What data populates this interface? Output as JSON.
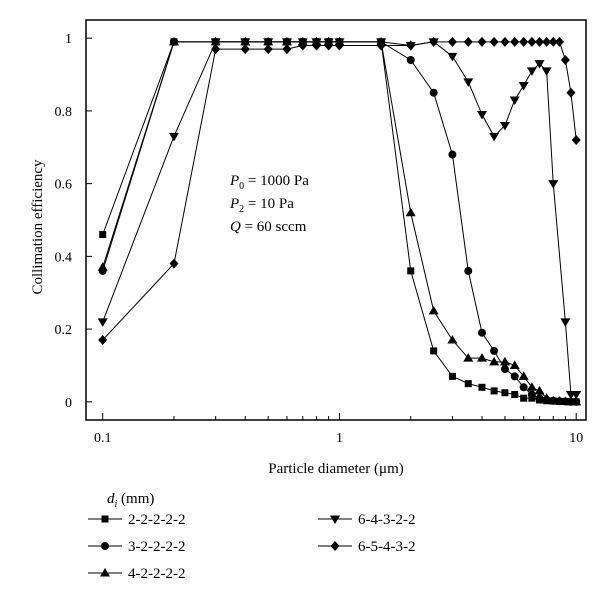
{
  "chart_data": {
    "type": "line",
    "title": "",
    "xlabel": "Particle diameter (μm)",
    "ylabel": "Collimation efficiency",
    "xscale": "log",
    "xlim": [
      0.085,
      11
    ],
    "ylim": [
      -0.05,
      1.05
    ],
    "grid": false,
    "x_ticks": [
      0.1,
      1,
      10
    ],
    "x_tick_labels": [
      "0.1",
      "1",
      "10"
    ],
    "y_ticks": [
      0,
      0.2,
      0.4,
      0.6,
      0.8,
      1
    ],
    "y_tick_labels": [
      "0",
      "0.2",
      "0.4",
      "0.6",
      "0.8",
      "1"
    ],
    "annotations": [
      "P0 = 1000 Pa",
      "P2 = 10 Pa",
      "Q = 60 sccm"
    ],
    "legend_title": "d_i (mm)",
    "legend_position": "bottom",
    "series": [
      {
        "name": "2-2-2-2-2",
        "marker": "square",
        "points": [
          [
            0.1,
            0.46
          ],
          [
            0.2,
            0.99
          ],
          [
            0.3,
            0.99
          ],
          [
            0.4,
            0.99
          ],
          [
            0.5,
            0.99
          ],
          [
            0.6,
            0.99
          ],
          [
            0.7,
            0.99
          ],
          [
            0.8,
            0.99
          ],
          [
            0.9,
            0.99
          ],
          [
            1.0,
            0.99
          ],
          [
            1.5,
            0.99
          ],
          [
            2.0,
            0.36
          ],
          [
            2.5,
            0.14
          ],
          [
            3.0,
            0.07
          ],
          [
            3.5,
            0.05
          ],
          [
            4.0,
            0.04
          ],
          [
            4.5,
            0.03
          ],
          [
            5.0,
            0.025
          ],
          [
            5.5,
            0.02
          ],
          [
            6.0,
            0.01
          ],
          [
            6.5,
            0.01
          ],
          [
            7.0,
            0.005
          ],
          [
            7.5,
            0.003
          ],
          [
            8.0,
            0.002
          ],
          [
            8.5,
            0.001
          ],
          [
            9.0,
            0.001
          ],
          [
            9.5,
            0.0
          ],
          [
            10.0,
            0.0
          ]
        ]
      },
      {
        "name": "3-2-2-2-2",
        "marker": "circle",
        "points": [
          [
            0.1,
            0.36
          ],
          [
            0.2,
            0.99
          ],
          [
            0.3,
            0.99
          ],
          [
            0.4,
            0.99
          ],
          [
            0.5,
            0.99
          ],
          [
            0.6,
            0.99
          ],
          [
            0.7,
            0.99
          ],
          [
            0.8,
            0.99
          ],
          [
            0.9,
            0.99
          ],
          [
            1.0,
            0.99
          ],
          [
            1.5,
            0.99
          ],
          [
            2.0,
            0.94
          ],
          [
            2.5,
            0.85
          ],
          [
            3.0,
            0.68
          ],
          [
            3.5,
            0.36
          ],
          [
            4.0,
            0.19
          ],
          [
            4.5,
            0.14
          ],
          [
            5.0,
            0.09
          ],
          [
            5.5,
            0.07
          ],
          [
            6.0,
            0.04
          ],
          [
            6.5,
            0.02
          ],
          [
            7.0,
            0.01
          ],
          [
            7.5,
            0.005
          ],
          [
            8.0,
            0.003
          ],
          [
            8.5,
            0.002
          ],
          [
            9.0,
            0.001
          ],
          [
            9.5,
            0.0
          ],
          [
            10.0,
            0.0
          ]
        ]
      },
      {
        "name": "4-2-2-2-2",
        "marker": "triangle-up",
        "points": [
          [
            0.1,
            0.37
          ],
          [
            0.2,
            0.99
          ],
          [
            0.3,
            0.99
          ],
          [
            0.4,
            0.99
          ],
          [
            0.5,
            0.99
          ],
          [
            0.6,
            0.99
          ],
          [
            0.7,
            0.99
          ],
          [
            0.8,
            0.99
          ],
          [
            0.9,
            0.99
          ],
          [
            1.0,
            0.99
          ],
          [
            1.5,
            0.99
          ],
          [
            2.0,
            0.52
          ],
          [
            2.5,
            0.25
          ],
          [
            3.0,
            0.17
          ],
          [
            3.5,
            0.12
          ],
          [
            4.0,
            0.12
          ],
          [
            4.5,
            0.11
          ],
          [
            5.0,
            0.11
          ],
          [
            5.5,
            0.1
          ],
          [
            6.0,
            0.07
          ],
          [
            6.5,
            0.04
          ],
          [
            7.0,
            0.03
          ],
          [
            7.5,
            0.01
          ],
          [
            8.0,
            0.003
          ],
          [
            8.5,
            0.002
          ],
          [
            9.0,
            0.001
          ],
          [
            9.5,
            0.0
          ],
          [
            10.0,
            0.0
          ]
        ]
      },
      {
        "name": "6-4-3-2-2",
        "marker": "triangle-down",
        "points": [
          [
            0.1,
            0.22
          ],
          [
            0.2,
            0.73
          ],
          [
            0.3,
            0.99
          ],
          [
            0.4,
            0.99
          ],
          [
            0.5,
            0.99
          ],
          [
            0.6,
            0.99
          ],
          [
            0.7,
            0.99
          ],
          [
            0.8,
            0.99
          ],
          [
            0.9,
            0.99
          ],
          [
            1.0,
            0.99
          ],
          [
            1.5,
            0.99
          ],
          [
            2.0,
            0.98
          ],
          [
            2.5,
            0.99
          ],
          [
            3.0,
            0.95
          ],
          [
            3.5,
            0.88
          ],
          [
            4.0,
            0.79
          ],
          [
            4.5,
            0.73
          ],
          [
            5.0,
            0.76
          ],
          [
            5.5,
            0.83
          ],
          [
            6.0,
            0.87
          ],
          [
            6.5,
            0.91
          ],
          [
            7.0,
            0.93
          ],
          [
            7.5,
            0.91
          ],
          [
            8.0,
            0.6
          ],
          [
            9.0,
            0.22
          ],
          [
            9.5,
            0.02
          ],
          [
            10.0,
            0.02
          ]
        ]
      },
      {
        "name": "6-5-4-3-2",
        "marker": "diamond",
        "points": [
          [
            0.1,
            0.17
          ],
          [
            0.2,
            0.38
          ],
          [
            0.3,
            0.97
          ],
          [
            0.4,
            0.97
          ],
          [
            0.5,
            0.97
          ],
          [
            0.6,
            0.97
          ],
          [
            0.7,
            0.98
          ],
          [
            0.8,
            0.98
          ],
          [
            0.9,
            0.98
          ],
          [
            1.0,
            0.98
          ],
          [
            1.5,
            0.98
          ],
          [
            2.0,
            0.98
          ],
          [
            2.5,
            0.99
          ],
          [
            3.0,
            0.99
          ],
          [
            3.5,
            0.99
          ],
          [
            4.0,
            0.99
          ],
          [
            4.5,
            0.99
          ],
          [
            5.0,
            0.99
          ],
          [
            5.5,
            0.99
          ],
          [
            6.0,
            0.99
          ],
          [
            6.5,
            0.99
          ],
          [
            7.0,
            0.99
          ],
          [
            7.5,
            0.99
          ],
          [
            8.0,
            0.99
          ],
          [
            8.5,
            0.99
          ],
          [
            9.0,
            0.94
          ],
          [
            9.5,
            0.85
          ],
          [
            10.0,
            0.72
          ]
        ]
      }
    ]
  }
}
